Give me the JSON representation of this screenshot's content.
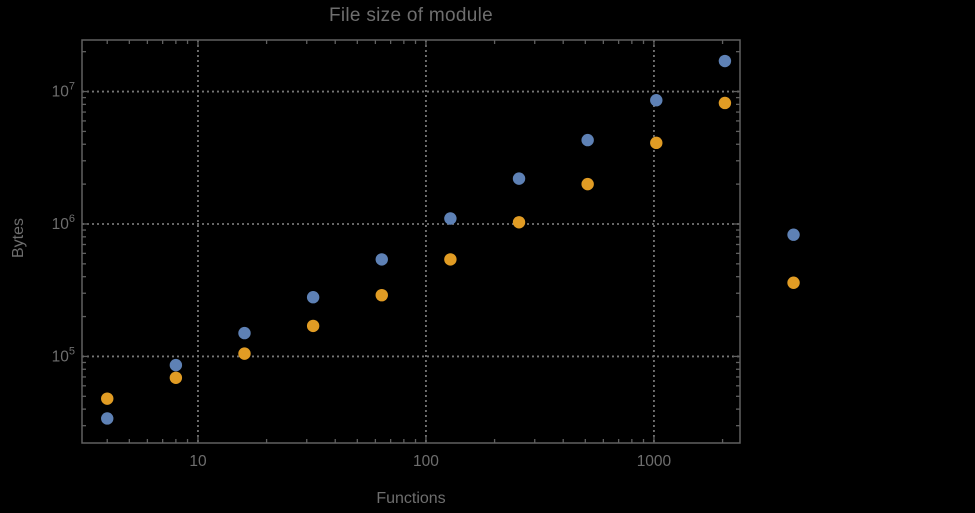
{
  "chart_data": {
    "type": "scatter",
    "title": "File size of module",
    "xlabel": "Functions",
    "ylabel": "Bytes",
    "x_scale": "log",
    "y_scale": "log",
    "xlim": [
      3.1,
      2385
    ],
    "ylim": [
      22200,
      24500000
    ],
    "grid": "dotted gridlines at decades, frame ticks on all four sides",
    "legend_position": "none",
    "x_major_ticks": [
      10,
      100,
      1000
    ],
    "x_major_labels": [
      "10",
      "100",
      "1000"
    ],
    "y_major_ticks": [
      100000,
      1000000,
      10000000
    ],
    "y_major_label_exponents": [
      {
        "base": "10",
        "exp": "5"
      },
      {
        "base": "10",
        "exp": "6"
      },
      {
        "base": "10",
        "exp": "7"
      }
    ],
    "note": "last pair of points (x=4096) is drawn outside the right frame edge (no plot-range clipping)",
    "series": [
      {
        "name": "blue",
        "color": "#5e81b5",
        "points": [
          [
            4,
            34000
          ],
          [
            8,
            86000
          ],
          [
            16,
            150000
          ],
          [
            32,
            280000
          ],
          [
            64,
            540000
          ],
          [
            128,
            1100000
          ],
          [
            256,
            2200000
          ],
          [
            512,
            4300000
          ],
          [
            1024,
            8600000
          ],
          [
            2048,
            17000000
          ],
          [
            4096,
            830000
          ]
        ]
      },
      {
        "name": "orange",
        "color": "#e19c24",
        "points": [
          [
            4,
            48000
          ],
          [
            8,
            69000
          ],
          [
            16,
            105000
          ],
          [
            32,
            170000
          ],
          [
            64,
            290000
          ],
          [
            128,
            540000
          ],
          [
            256,
            1030000
          ],
          [
            512,
            2000000
          ],
          [
            1024,
            4100000
          ],
          [
            2048,
            8200000
          ],
          [
            4096,
            360000
          ]
        ]
      }
    ]
  },
  "style": {
    "background": "#000000",
    "frame_color": "#606060",
    "grid_color": "#757575",
    "text_color": "#6e6e6e",
    "point_radius": 6.2
  }
}
